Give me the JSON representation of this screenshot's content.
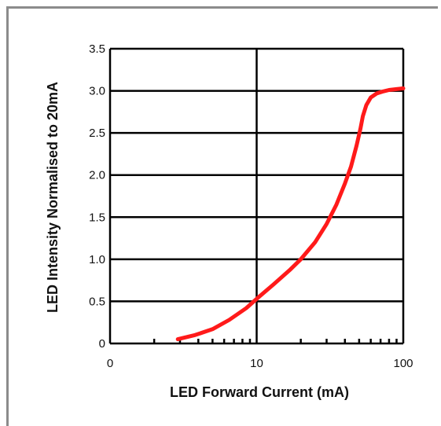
{
  "chart_data": {
    "type": "line",
    "title": "",
    "xlabel": "LED Forward Current (mA)",
    "ylabel": "LED Intensity Normalised to 20mA",
    "x_scale": "log",
    "xlim": [
      1,
      100
    ],
    "ylim": [
      0,
      3.5
    ],
    "grid": true,
    "x_tick_labels": [
      "0",
      "10",
      "100"
    ],
    "y_tick_labels": [
      "0",
      "0.5",
      "1.0",
      "1.5",
      "2.0",
      "2.5",
      "3.0",
      "3.5"
    ],
    "y_ticks": [
      0,
      0.5,
      1.0,
      1.5,
      2.0,
      2.5,
      3.0,
      3.5
    ],
    "colors": {
      "line": "#ff1a1a",
      "grid": "#000000"
    },
    "series": [
      {
        "x": [
          2.9,
          3.8,
          5,
          6.5,
          8.5,
          10,
          13,
          17,
          20,
          25,
          30,
          35,
          40,
          44,
          48,
          51,
          53,
          56,
          60,
          66,
          72,
          80,
          90,
          100
        ],
        "y": [
          0.05,
          0.1,
          0.17,
          0.28,
          0.42,
          0.53,
          0.7,
          0.88,
          1.0,
          1.2,
          1.42,
          1.65,
          1.9,
          2.1,
          2.35,
          2.55,
          2.7,
          2.83,
          2.92,
          2.97,
          2.99,
          3.01,
          3.02,
          3.03
        ]
      }
    ]
  }
}
